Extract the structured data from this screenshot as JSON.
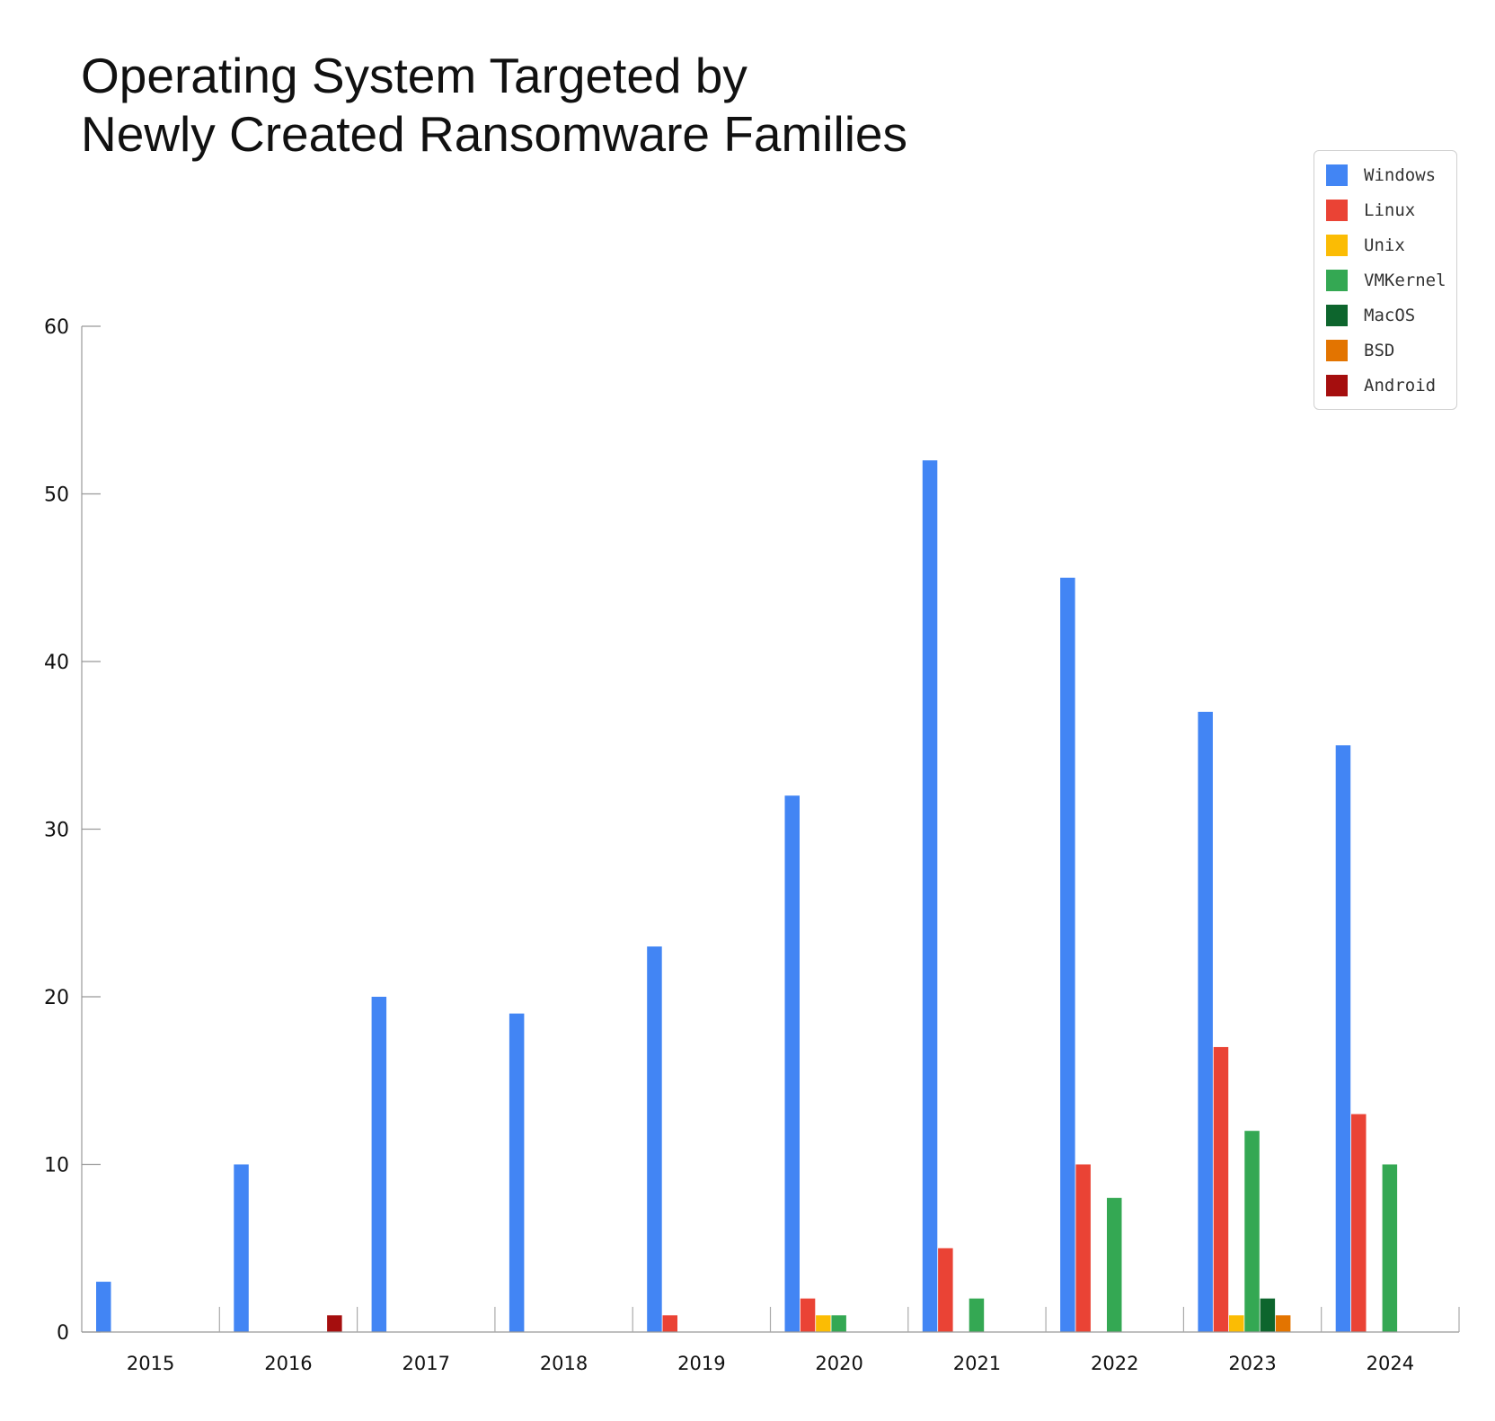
{
  "title_lines": [
    "Operating System Targeted by",
    "Newly Created Ransomware Families"
  ],
  "chart_data": {
    "type": "bar",
    "categories": [
      "2015",
      "2016",
      "2017",
      "2018",
      "2019",
      "2020",
      "2021",
      "2022",
      "2023",
      "2024"
    ],
    "series": [
      {
        "name": "Windows",
        "color": "#4285F4",
        "values": [
          3,
          10,
          20,
          19,
          23,
          32,
          52,
          45,
          37,
          35
        ]
      },
      {
        "name": "Linux",
        "color": "#EA4335",
        "values": [
          0,
          0,
          0,
          0,
          1,
          2,
          5,
          10,
          17,
          13
        ]
      },
      {
        "name": "Unix",
        "color": "#FBBC04",
        "values": [
          0,
          0,
          0,
          0,
          0,
          1,
          0,
          0,
          1,
          0
        ]
      },
      {
        "name": "VMKernel",
        "color": "#34A853",
        "values": [
          0,
          0,
          0,
          0,
          0,
          1,
          2,
          8,
          12,
          10
        ]
      },
      {
        "name": "MacOS",
        "color": "#0D652D",
        "values": [
          0,
          0,
          0,
          0,
          0,
          0,
          0,
          0,
          2,
          0
        ]
      },
      {
        "name": "BSD",
        "color": "#E37400",
        "values": [
          0,
          0,
          0,
          0,
          0,
          0,
          0,
          0,
          1,
          0
        ]
      },
      {
        "name": "Android",
        "color": "#A50E0E",
        "values": [
          0,
          1,
          0,
          0,
          0,
          0,
          0,
          0,
          0,
          0
        ]
      }
    ],
    "yticks": [
      0,
      10,
      20,
      30,
      40,
      50,
      60
    ],
    "ylim": [
      0,
      60
    ],
    "legend_position": "top-right",
    "grid": false
  }
}
